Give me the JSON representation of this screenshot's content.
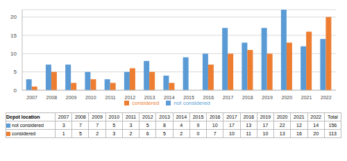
{
  "chart_data": {
    "type": "bar",
    "categories": [
      "2007",
      "2008",
      "2009",
      "2010",
      "2011",
      "2012",
      "2013",
      "2014",
      "2015",
      "2016",
      "2017",
      "2018",
      "2019",
      "2020",
      "2021",
      "2022"
    ],
    "series": [
      {
        "name": "not considered",
        "color": "#5b9bd5",
        "values": [
          3,
          7,
          7,
          5,
          3,
          5,
          8,
          4,
          9,
          10,
          17,
          13,
          17,
          22,
          12,
          14
        ]
      },
      {
        "name": "considered",
        "color": "#ed7d31",
        "values": [
          1,
          5,
          2,
          3,
          2,
          6,
          5,
          2,
          0,
          7,
          10,
          11,
          10,
          13,
          16,
          20
        ]
      }
    ],
    "ylim": [
      0,
      22
    ],
    "yticks": [
      0,
      5,
      10,
      15,
      20
    ],
    "grid": true,
    "legend": "bottom"
  },
  "table": {
    "header": "Depot location",
    "total_label": "Total",
    "totals": [
      156,
      113
    ]
  }
}
